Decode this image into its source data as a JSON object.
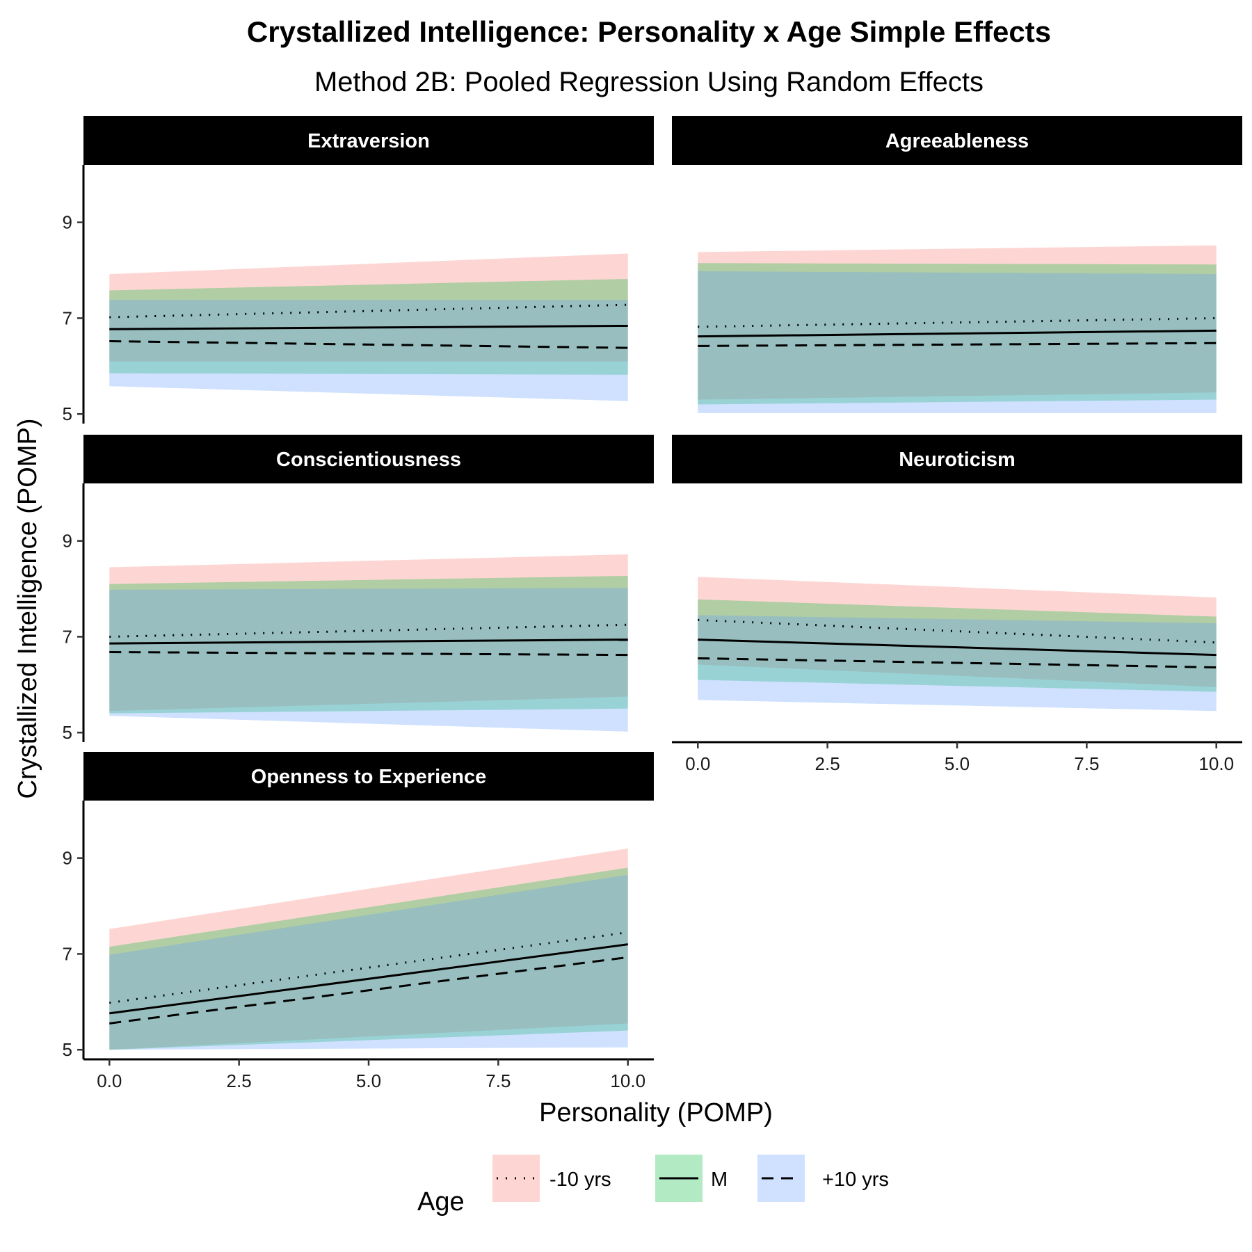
{
  "title": "Crystallized Intelligence: Personality x Age Simple Effects",
  "subtitle": "Method 2B: Pooled Regression Using Random Effects",
  "xlabel": "Personality (POMP)",
  "ylabel": "Crystallized Intelligence (POMP)",
  "legend": {
    "title": "Age",
    "placement": "bottom",
    "entries": [
      {
        "label": "-10 yrs",
        "fill": "#f8766d",
        "linestyle": "dotted"
      },
      {
        "label": "M",
        "fill": "#00ba38",
        "linestyle": "solid"
      },
      {
        "label": "+10 yrs",
        "fill": "#619cff",
        "linestyle": "dashed"
      }
    ]
  },
  "colors": {
    "strip_bg": "#000000",
    "strip_text": "#ffffff",
    "band_opacity": 0.3
  },
  "chart_data": {
    "type": "line",
    "facet_layout": "2 columns x 3 rows",
    "xlim": [
      -0.5,
      10.5
    ],
    "ylim": [
      4.8,
      10.2
    ],
    "x_ticks": [
      0.0,
      2.5,
      5.0,
      7.5,
      10.0
    ],
    "x_tick_labels": [
      "0.0",
      "2.5",
      "5.0",
      "7.5",
      "10.0"
    ],
    "y_ticks": [
      5,
      7,
      9
    ],
    "y_tick_labels": [
      "5",
      "7",
      "9"
    ],
    "x": [
      0,
      10
    ],
    "panels": [
      {
        "name": "Extraversion",
        "series": [
          {
            "name": "-10 yrs",
            "values": [
              7.02,
              7.28
            ],
            "lower": [
              6.1,
              6.1
            ],
            "upper": [
              7.92,
              8.35
            ]
          },
          {
            "name": "M",
            "values": [
              6.77,
              6.84
            ],
            "lower": [
              5.85,
              5.82
            ],
            "upper": [
              7.58,
              7.82
            ]
          },
          {
            "name": "+10 yrs",
            "values": [
              6.52,
              6.38
            ],
            "lower": [
              5.58,
              5.27
            ],
            "upper": [
              7.38,
              7.38
            ]
          }
        ]
      },
      {
        "name": "Agreeableness",
        "series": [
          {
            "name": "-10 yrs",
            "values": [
              6.82,
              7.0
            ],
            "lower": [
              5.3,
              5.45
            ],
            "upper": [
              8.38,
              8.52
            ]
          },
          {
            "name": "M",
            "values": [
              6.62,
              6.74
            ],
            "lower": [
              5.2,
              5.3
            ],
            "upper": [
              8.15,
              8.12
            ]
          },
          {
            "name": "+10 yrs",
            "values": [
              6.42,
              6.48
            ],
            "lower": [
              5.02,
              5.02
            ],
            "upper": [
              7.98,
              7.92
            ]
          }
        ]
      },
      {
        "name": "Conscientiousness",
        "series": [
          {
            "name": "-10 yrs",
            "values": [
              7.0,
              7.25
            ],
            "lower": [
              5.45,
              5.75
            ],
            "upper": [
              8.45,
              8.72
            ]
          },
          {
            "name": "M",
            "values": [
              6.86,
              6.94
            ],
            "lower": [
              5.4,
              5.5
            ],
            "upper": [
              8.1,
              8.27
            ]
          },
          {
            "name": "+10 yrs",
            "values": [
              6.68,
              6.62
            ],
            "lower": [
              5.35,
              5.02
            ],
            "upper": [
              7.98,
              8.02
            ]
          }
        ]
      },
      {
        "name": "Neuroticism",
        "series": [
          {
            "name": "-10 yrs",
            "values": [
              7.35,
              6.88
            ],
            "lower": [
              6.42,
              5.95
            ],
            "upper": [
              8.25,
              7.82
            ]
          },
          {
            "name": "M",
            "values": [
              6.94,
              6.62
            ],
            "lower": [
              6.1,
              5.85
            ],
            "upper": [
              7.78,
              7.42
            ]
          },
          {
            "name": "+10 yrs",
            "values": [
              6.55,
              6.36
            ],
            "lower": [
              5.68,
              5.45
            ],
            "upper": [
              7.45,
              7.28
            ]
          }
        ]
      },
      {
        "name": "Openness to Experience",
        "series": [
          {
            "name": "-10 yrs",
            "values": [
              5.98,
              7.45
            ],
            "lower": [
              5.0,
              5.55
            ],
            "upper": [
              7.52,
              9.2
            ]
          },
          {
            "name": "M",
            "values": [
              5.76,
              7.2
            ],
            "lower": [
              5.0,
              5.4
            ],
            "upper": [
              7.15,
              8.8
            ]
          },
          {
            "name": "+10 yrs",
            "values": [
              5.55,
              6.93
            ],
            "lower": [
              5.0,
              5.05
            ],
            "upper": [
              6.98,
              8.65
            ]
          }
        ]
      }
    ]
  }
}
